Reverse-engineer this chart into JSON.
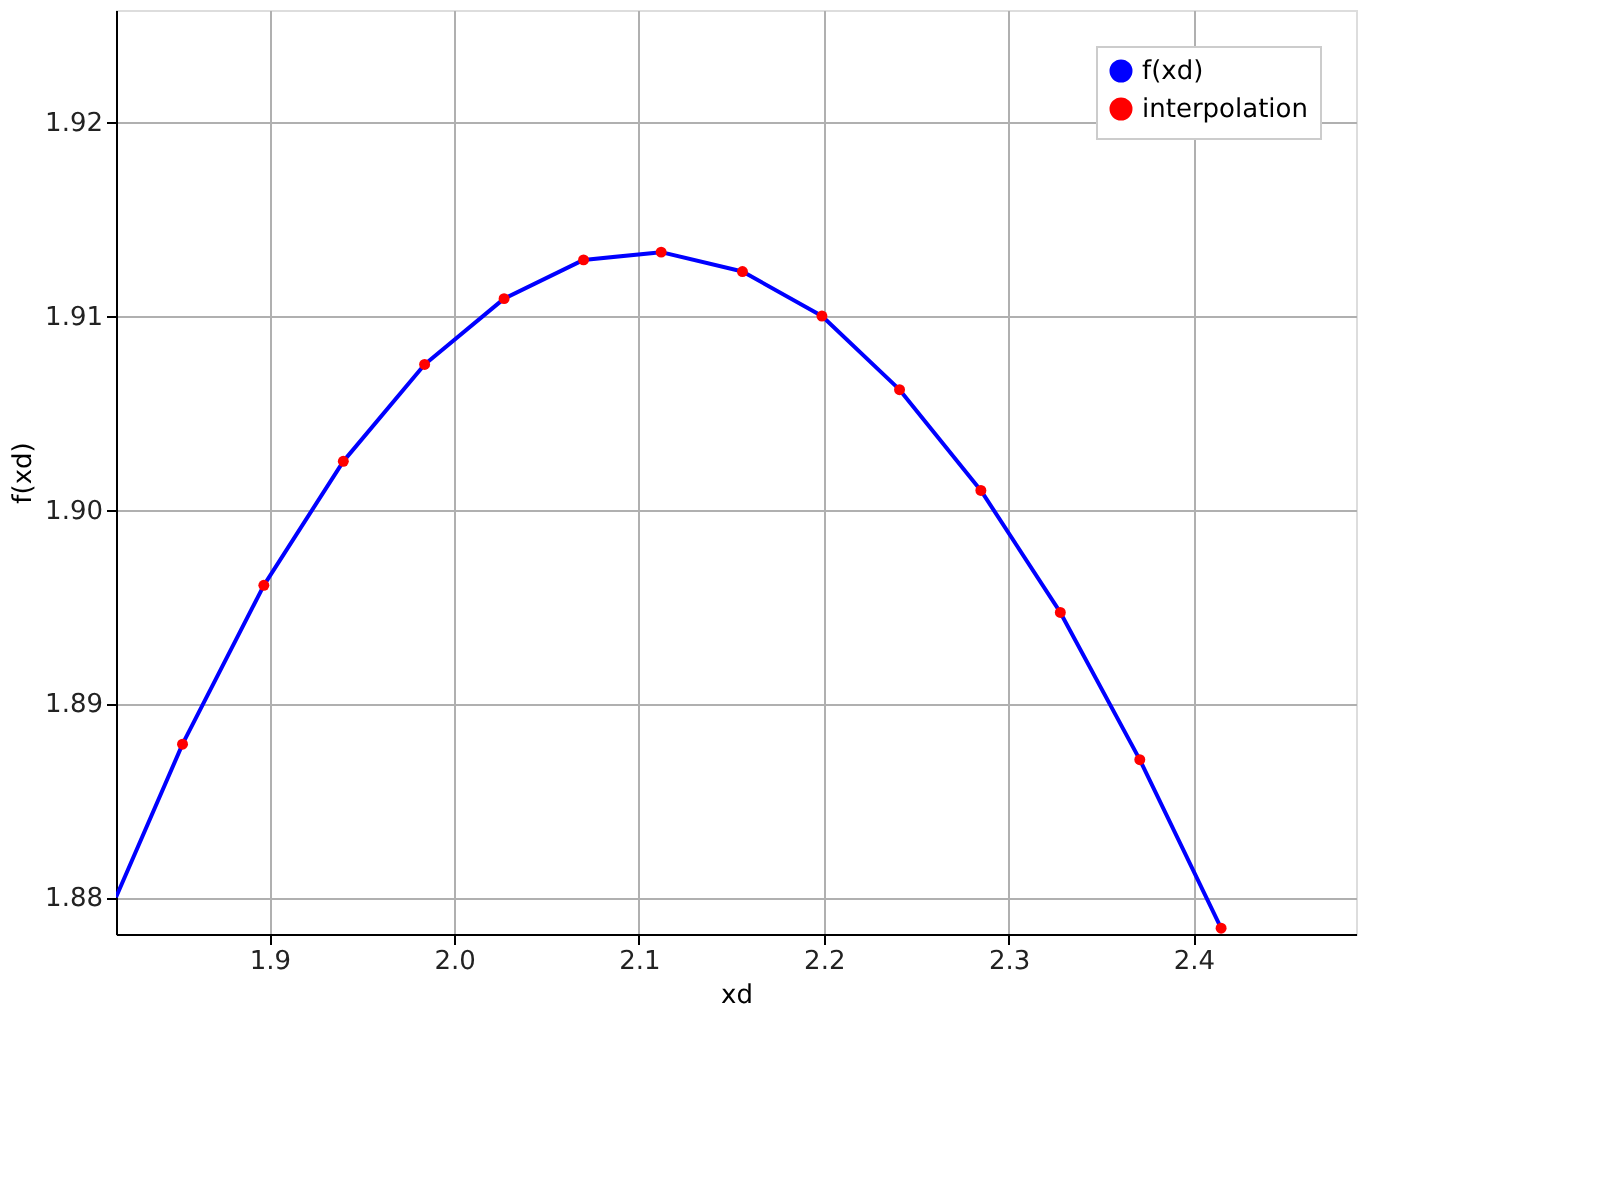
{
  "chart_data": {
    "type": "line",
    "xlabel": "xd",
    "ylabel": "f(xd)",
    "xlim": [
      1.817,
      2.488
    ],
    "ylim": [
      1.8781,
      1.9258
    ],
    "xticks": [
      1.9,
      {
        "value": 2.0,
        "label": "2.0"
      },
      2.1,
      2.2,
      2.3,
      2.4
    ],
    "yticks": [
      {
        "value": 1.88,
        "label": "1.88"
      },
      1.89,
      {
        "value": 1.9,
        "label": "1.90"
      },
      1.91,
      1.92
    ],
    "grid": true,
    "legend": "top right",
    "series": [
      {
        "name": "f(xd)",
        "color": "#0000ff",
        "marker": "none",
        "x": [
          1.817,
          1.853,
          1.897,
          1.94,
          1.984,
          2.027,
          2.07,
          2.112,
          2.156,
          2.199,
          2.241,
          2.285,
          2.328,
          2.371,
          2.415
        ],
        "values": [
          1.88,
          1.8879,
          1.8961,
          1.9025,
          1.9075,
          1.9109,
          1.9129,
          1.9133,
          1.9123,
          1.91,
          1.9062,
          1.901,
          1.8947,
          1.8871,
          1.8784
        ]
      },
      {
        "name": "interpolation",
        "type": "scatter",
        "color": "#ff0000",
        "marker": "circle",
        "x": [
          1.853,
          1.897,
          1.94,
          1.984,
          2.027,
          2.07,
          2.112,
          2.156,
          2.199,
          2.241,
          2.285,
          2.328,
          2.371,
          2.415
        ],
        "values": [
          1.8879,
          1.8961,
          1.9025,
          1.9075,
          1.9109,
          1.9129,
          1.9133,
          1.9123,
          1.91,
          1.9062,
          1.901,
          1.8947,
          1.8871,
          1.8784
        ]
      }
    ]
  }
}
